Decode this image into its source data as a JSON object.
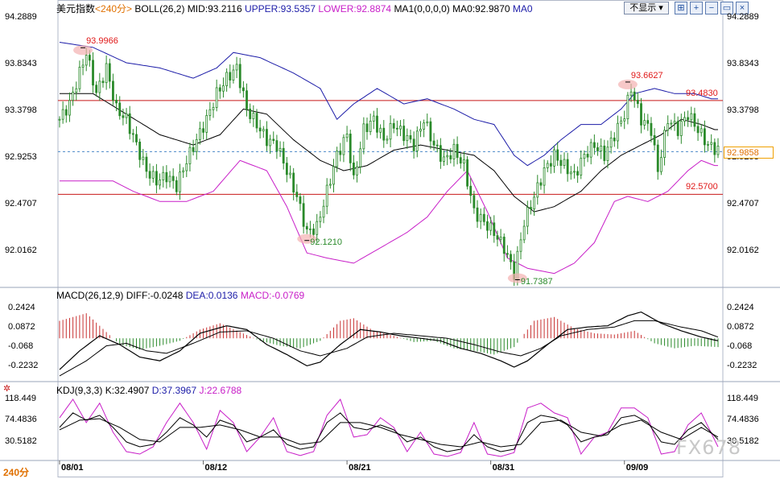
{
  "header": {
    "symbol": "美元指数",
    "period": "<240分>",
    "boll_title": "BOLL(26,2)",
    "boll_mid": "MID:93.2116",
    "boll_upper": "UPPER:93.5357",
    "boll_lower": "LOWER:92.8874",
    "ma_title": "MA1(0,0,0,0)",
    "ma0": "MA0:92.9870",
    "ma1": "MA0",
    "display_button": "不显示",
    "macd_title": "MACD(26,12,9)",
    "macd_diff": "DIFF:-0.0248",
    "macd_dea": "DEA:0.0136",
    "macd_macd": "MACD:-0.0769",
    "kdj_title": "KDJ(9,3,3)",
    "kdj_k": "K:32.4907",
    "kdj_d": "D:37.3967",
    "kdj_j": "J:22.6788"
  },
  "footer": {
    "period_label": "240分",
    "watermark": "FX678"
  },
  "colors": {
    "up": "#2a8a2a",
    "down": "#2a8a2a",
    "boll_upper": "#1c1ca8",
    "boll_mid": "#000000",
    "boll_lower": "#c81ec8",
    "macd_pos": "#c83232",
    "macd_neg": "#2a8a2a",
    "dea": "#000000",
    "diff": "#000000",
    "k": "#000000",
    "d": "#000000",
    "j": "#c81ec8",
    "hline": "#c81818",
    "current": "#4a88c8"
  },
  "chart_data": {
    "type": "candlestick",
    "price_axis": {
      "ticks": [
        94.2889,
        93.8343,
        93.3798,
        92.9253,
        92.4707,
        92.0162
      ],
      "ylim": [
        91.68,
        94.32
      ]
    },
    "date_labels": [
      {
        "label": "08/01",
        "index": 0
      },
      {
        "label": "08/12",
        "index": 43
      },
      {
        "label": "08/21",
        "index": 86
      },
      {
        "label": "08/31",
        "index": 129
      },
      {
        "label": "09/09",
        "index": 169
      }
    ],
    "horizontal_lines": [
      93.483,
      92.57
    ],
    "horizontal_line_labels": [
      "93.4830",
      "92.5700"
    ],
    "current_price": 92.9858,
    "current_price_label": "92.9858",
    "annotations": [
      {
        "label": "93.9966",
        "value": 93.9966,
        "index": 7,
        "kind": "high"
      },
      {
        "label": "92.1210",
        "value": 92.121,
        "index": 74,
        "kind": "low"
      },
      {
        "label": "91.7387",
        "value": 91.7387,
        "index": 137,
        "kind": "low"
      },
      {
        "label": "93.6627",
        "value": 93.6627,
        "index": 170,
        "kind": "high"
      }
    ],
    "close_path": [
      [
        0,
        93.3
      ],
      [
        3,
        93.45
      ],
      [
        6,
        93.75
      ],
      [
        8,
        93.95
      ],
      [
        11,
        93.55
      ],
      [
        14,
        93.8
      ],
      [
        17,
        93.4
      ],
      [
        20,
        93.3
      ],
      [
        23,
        93.05
      ],
      [
        26,
        92.8
      ],
      [
        29,
        92.7
      ],
      [
        32,
        92.75
      ],
      [
        35,
        92.65
      ],
      [
        38,
        92.9
      ],
      [
        41,
        93.1
      ],
      [
        44,
        93.3
      ],
      [
        47,
        93.55
      ],
      [
        50,
        93.7
      ],
      [
        53,
        93.8
      ],
      [
        56,
        93.4
      ],
      [
        59,
        93.25
      ],
      [
        62,
        93.1
      ],
      [
        65,
        93.05
      ],
      [
        68,
        92.8
      ],
      [
        71,
        92.55
      ],
      [
        74,
        92.2
      ],
      [
        77,
        92.25
      ],
      [
        80,
        92.6
      ],
      [
        83,
        92.95
      ],
      [
        86,
        93.15
      ],
      [
        88,
        92.7
      ],
      [
        91,
        93.2
      ],
      [
        94,
        93.3
      ],
      [
        97,
        93.1
      ],
      [
        100,
        93.25
      ],
      [
        103,
        93.15
      ],
      [
        106,
        93.05
      ],
      [
        109,
        93.3
      ],
      [
        112,
        93.05
      ],
      [
        115,
        92.9
      ],
      [
        118,
        93.0
      ],
      [
        121,
        92.85
      ],
      [
        124,
        92.4
      ],
      [
        127,
        92.3
      ],
      [
        130,
        92.2
      ],
      [
        133,
        92.05
      ],
      [
        136,
        91.8
      ],
      [
        139,
        92.3
      ],
      [
        142,
        92.55
      ],
      [
        145,
        92.8
      ],
      [
        148,
        92.95
      ],
      [
        151,
        92.85
      ],
      [
        154,
        92.75
      ],
      [
        157,
        92.95
      ],
      [
        160,
        93.05
      ],
      [
        163,
        92.95
      ],
      [
        166,
        93.15
      ],
      [
        169,
        93.35
      ],
      [
        171,
        93.6
      ],
      [
        174,
        93.3
      ],
      [
        177,
        93.2
      ],
      [
        179,
        92.8
      ],
      [
        182,
        93.3
      ],
      [
        185,
        93.2
      ],
      [
        188,
        93.35
      ],
      [
        191,
        93.2
      ],
      [
        194,
        93.05
      ],
      [
        197,
        93.0
      ]
    ],
    "upper_path": [
      [
        0,
        94.05
      ],
      [
        10,
        94.0
      ],
      [
        20,
        93.85
      ],
      [
        30,
        93.8
      ],
      [
        40,
        93.7
      ],
      [
        47,
        93.8
      ],
      [
        52,
        93.95
      ],
      [
        60,
        93.9
      ],
      [
        70,
        93.75
      ],
      [
        78,
        93.6
      ],
      [
        83,
        93.3
      ],
      [
        88,
        93.45
      ],
      [
        95,
        93.6
      ],
      [
        103,
        93.45
      ],
      [
        110,
        93.5
      ],
      [
        118,
        93.4
      ],
      [
        124,
        93.3
      ],
      [
        130,
        93.25
      ],
      [
        136,
        92.95
      ],
      [
        140,
        92.85
      ],
      [
        145,
        92.95
      ],
      [
        150,
        93.1
      ],
      [
        156,
        93.25
      ],
      [
        162,
        93.25
      ],
      [
        168,
        93.4
      ],
      [
        172,
        93.55
      ],
      [
        178,
        93.6
      ],
      [
        184,
        93.55
      ],
      [
        190,
        93.55
      ],
      [
        195,
        93.5
      ]
    ],
    "mid_path": [
      [
        0,
        93.55
      ],
      [
        10,
        93.55
      ],
      [
        20,
        93.35
      ],
      [
        30,
        93.15
      ],
      [
        40,
        93.05
      ],
      [
        48,
        93.15
      ],
      [
        55,
        93.4
      ],
      [
        62,
        93.35
      ],
      [
        70,
        93.1
      ],
      [
        78,
        92.9
      ],
      [
        85,
        92.8
      ],
      [
        92,
        92.85
      ],
      [
        100,
        93.0
      ],
      [
        108,
        93.05
      ],
      [
        116,
        93.0
      ],
      [
        124,
        92.95
      ],
      [
        130,
        92.8
      ],
      [
        136,
        92.55
      ],
      [
        142,
        92.4
      ],
      [
        148,
        92.45
      ],
      [
        156,
        92.6
      ],
      [
        162,
        92.8
      ],
      [
        168,
        92.95
      ],
      [
        174,
        93.05
      ],
      [
        180,
        93.15
      ],
      [
        186,
        93.3
      ],
      [
        192,
        93.25
      ],
      [
        196,
        93.2
      ]
    ],
    "lower_path": [
      [
        0,
        92.7
      ],
      [
        8,
        92.7
      ],
      [
        16,
        92.7
      ],
      [
        22,
        92.6
      ],
      [
        30,
        92.5
      ],
      [
        38,
        92.5
      ],
      [
        46,
        92.6
      ],
      [
        54,
        92.9
      ],
      [
        62,
        92.8
      ],
      [
        68,
        92.45
      ],
      [
        74,
        92.0
      ],
      [
        80,
        91.95
      ],
      [
        88,
        91.9
      ],
      [
        96,
        92.05
      ],
      [
        104,
        92.2
      ],
      [
        110,
        92.35
      ],
      [
        116,
        92.6
      ],
      [
        122,
        92.8
      ],
      [
        128,
        92.4
      ],
      [
        134,
        91.95
      ],
      [
        140,
        91.85
      ],
      [
        148,
        91.8
      ],
      [
        154,
        91.9
      ],
      [
        160,
        92.1
      ],
      [
        166,
        92.5
      ],
      [
        170,
        92.55
      ],
      [
        176,
        92.5
      ],
      [
        182,
        92.6
      ],
      [
        188,
        92.8
      ],
      [
        192,
        92.9
      ],
      [
        196,
        92.85
      ]
    ],
    "macd_axis": {
      "ticks": [
        0.2424,
        0.0872,
        -0.068,
        -0.2232
      ],
      "ylim": [
        -0.32,
        0.31
      ]
    },
    "macd_hist_path": [
      [
        0,
        0.14
      ],
      [
        8,
        0.2
      ],
      [
        14,
        0.05
      ],
      [
        18,
        -0.05
      ],
      [
        24,
        -0.09
      ],
      [
        30,
        -0.06
      ],
      [
        36,
        -0.02
      ],
      [
        42,
        0.07
      ],
      [
        48,
        0.12
      ],
      [
        54,
        0.05
      ],
      [
        60,
        -0.02
      ],
      [
        66,
        -0.06
      ],
      [
        72,
        -0.08
      ],
      [
        78,
        -0.02
      ],
      [
        84,
        0.14
      ],
      [
        88,
        0.16
      ],
      [
        94,
        0.06
      ],
      [
        100,
        0.02
      ],
      [
        106,
        -0.03
      ],
      [
        112,
        -0.02
      ],
      [
        118,
        -0.08
      ],
      [
        124,
        -0.1
      ],
      [
        130,
        -0.13
      ],
      [
        136,
        -0.07
      ],
      [
        142,
        0.14
      ],
      [
        148,
        0.17
      ],
      [
        154,
        0.08
      ],
      [
        160,
        0.04
      ],
      [
        166,
        0.03
      ],
      [
        172,
        0.06
      ],
      [
        178,
        -0.04
      ],
      [
        184,
        -0.08
      ],
      [
        190,
        -0.06
      ],
      [
        197,
        -0.07
      ]
    ],
    "macd_diff_path": [
      [
        0,
        -0.25
      ],
      [
        6,
        -0.1
      ],
      [
        12,
        0.02
      ],
      [
        18,
        -0.05
      ],
      [
        24,
        -0.15
      ],
      [
        30,
        -0.18
      ],
      [
        36,
        -0.1
      ],
      [
        42,
        0.04
      ],
      [
        50,
        0.1
      ],
      [
        56,
        0.07
      ],
      [
        62,
        -0.05
      ],
      [
        68,
        -0.13
      ],
      [
        74,
        -0.22
      ],
      [
        78,
        -0.19
      ],
      [
        84,
        -0.05
      ],
      [
        90,
        0.07
      ],
      [
        96,
        0.05
      ],
      [
        102,
        0.02
      ],
      [
        108,
        0.0
      ],
      [
        114,
        -0.02
      ],
      [
        120,
        -0.08
      ],
      [
        126,
        -0.12
      ],
      [
        132,
        -0.18
      ],
      [
        136,
        -0.23
      ],
      [
        140,
        -0.18
      ],
      [
        146,
        -0.05
      ],
      [
        152,
        0.07
      ],
      [
        158,
        0.09
      ],
      [
        164,
        0.1
      ],
      [
        170,
        0.18
      ],
      [
        174,
        0.21
      ],
      [
        180,
        0.12
      ],
      [
        186,
        0.06
      ],
      [
        192,
        0.01
      ],
      [
        197,
        -0.02
      ]
    ],
    "macd_dea_path": [
      [
        0,
        -0.3
      ],
      [
        8,
        -0.18
      ],
      [
        14,
        -0.06
      ],
      [
        20,
        -0.04
      ],
      [
        26,
        -0.1
      ],
      [
        32,
        -0.12
      ],
      [
        40,
        -0.04
      ],
      [
        48,
        0.05
      ],
      [
        56,
        0.06
      ],
      [
        64,
        0.0
      ],
      [
        72,
        -0.1
      ],
      [
        78,
        -0.14
      ],
      [
        86,
        -0.08
      ],
      [
        92,
        0.01
      ],
      [
        100,
        0.04
      ],
      [
        108,
        0.02
      ],
      [
        116,
        0.0
      ],
      [
        124,
        -0.05
      ],
      [
        132,
        -0.11
      ],
      [
        138,
        -0.14
      ],
      [
        144,
        -0.08
      ],
      [
        150,
        0.02
      ],
      [
        158,
        0.07
      ],
      [
        166,
        0.09
      ],
      [
        172,
        0.14
      ],
      [
        178,
        0.14
      ],
      [
        186,
        0.09
      ],
      [
        192,
        0.06
      ],
      [
        197,
        0.01
      ]
    ],
    "kdj_axis": {
      "ticks": [
        118.449,
        74.4836,
        30.5182
      ],
      "ylim": [
        -5,
        128
      ]
    },
    "kdj_k_path": [
      [
        0,
        60
      ],
      [
        4,
        90
      ],
      [
        8,
        75
      ],
      [
        12,
        85
      ],
      [
        16,
        60
      ],
      [
        20,
        30
      ],
      [
        24,
        20
      ],
      [
        28,
        25
      ],
      [
        32,
        50
      ],
      [
        36,
        80
      ],
      [
        40,
        65
      ],
      [
        44,
        40
      ],
      [
        48,
        75
      ],
      [
        52,
        65
      ],
      [
        56,
        30
      ],
      [
        60,
        40
      ],
      [
        64,
        55
      ],
      [
        68,
        25
      ],
      [
        72,
        15
      ],
      [
        76,
        20
      ],
      [
        80,
        70
      ],
      [
        84,
        90
      ],
      [
        88,
        60
      ],
      [
        92,
        55
      ],
      [
        96,
        65
      ],
      [
        100,
        55
      ],
      [
        104,
        30
      ],
      [
        108,
        40
      ],
      [
        112,
        20
      ],
      [
        116,
        10
      ],
      [
        120,
        15
      ],
      [
        124,
        45
      ],
      [
        128,
        20
      ],
      [
        132,
        10
      ],
      [
        136,
        15
      ],
      [
        140,
        70
      ],
      [
        144,
        85
      ],
      [
        148,
        80
      ],
      [
        152,
        65
      ],
      [
        156,
        30
      ],
      [
        160,
        40
      ],
      [
        164,
        45
      ],
      [
        168,
        80
      ],
      [
        172,
        85
      ],
      [
        176,
        70
      ],
      [
        180,
        30
      ],
      [
        184,
        25
      ],
      [
        188,
        55
      ],
      [
        192,
        70
      ],
      [
        197,
        35
      ]
    ],
    "kdj_d_path": [
      [
        0,
        55
      ],
      [
        6,
        75
      ],
      [
        12,
        78
      ],
      [
        18,
        60
      ],
      [
        24,
        35
      ],
      [
        30,
        30
      ],
      [
        36,
        60
      ],
      [
        42,
        60
      ],
      [
        48,
        65
      ],
      [
        54,
        55
      ],
      [
        60,
        40
      ],
      [
        66,
        40
      ],
      [
        72,
        25
      ],
      [
        78,
        30
      ],
      [
        84,
        70
      ],
      [
        90,
        70
      ],
      [
        96,
        60
      ],
      [
        102,
        45
      ],
      [
        108,
        35
      ],
      [
        114,
        25
      ],
      [
        120,
        20
      ],
      [
        126,
        30
      ],
      [
        132,
        20
      ],
      [
        138,
        25
      ],
      [
        144,
        70
      ],
      [
        150,
        75
      ],
      [
        156,
        50
      ],
      [
        162,
        42
      ],
      [
        168,
        65
      ],
      [
        174,
        75
      ],
      [
        180,
        50
      ],
      [
        186,
        35
      ],
      [
        192,
        60
      ],
      [
        197,
        40
      ]
    ],
    "kdj_j_path": [
      [
        0,
        80
      ],
      [
        4,
        118
      ],
      [
        8,
        70
      ],
      [
        12,
        110
      ],
      [
        16,
        50
      ],
      [
        20,
        10
      ],
      [
        24,
        5
      ],
      [
        28,
        20
      ],
      [
        32,
        70
      ],
      [
        36,
        110
      ],
      [
        40,
        70
      ],
      [
        44,
        15
      ],
      [
        48,
        95
      ],
      [
        52,
        70
      ],
      [
        56,
        10
      ],
      [
        60,
        40
      ],
      [
        64,
        80
      ],
      [
        68,
        10
      ],
      [
        72,
        2
      ],
      [
        76,
        10
      ],
      [
        80,
        85
      ],
      [
        84,
        118
      ],
      [
        88,
        40
      ],
      [
        92,
        45
      ],
      [
        96,
        80
      ],
      [
        100,
        60
      ],
      [
        104,
        10
      ],
      [
        108,
        50
      ],
      [
        112,
        5
      ],
      [
        116,
        0
      ],
      [
        120,
        8
      ],
      [
        124,
        70
      ],
      [
        128,
        5
      ],
      [
        132,
        0
      ],
      [
        136,
        8
      ],
      [
        140,
        100
      ],
      [
        144,
        110
      ],
      [
        148,
        90
      ],
      [
        152,
        80
      ],
      [
        156,
        5
      ],
      [
        160,
        40
      ],
      [
        164,
        50
      ],
      [
        168,
        100
      ],
      [
        172,
        100
      ],
      [
        176,
        80
      ],
      [
        180,
        5
      ],
      [
        184,
        10
      ],
      [
        188,
        65
      ],
      [
        192,
        90
      ],
      [
        197,
        20
      ]
    ]
  }
}
